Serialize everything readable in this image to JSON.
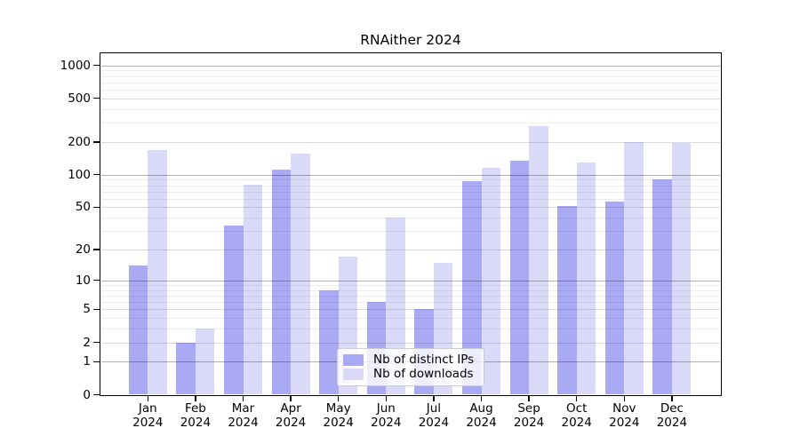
{
  "chart_data": {
    "type": "bar",
    "title": "RNAither 2024",
    "categories": [
      "Jan",
      "Feb",
      "Mar",
      "Apr",
      "May",
      "Jun",
      "Jul",
      "Aug",
      "Sep",
      "Oct",
      "Nov",
      "Dec"
    ],
    "category_year": "2024",
    "series": [
      {
        "name": "Nb of distinct IPs",
        "color": "#a9a9f4",
        "values": [
          14,
          2,
          34,
          112,
          8,
          6,
          5,
          87,
          135,
          51,
          56,
          90
        ]
      },
      {
        "name": "Nb of downloads",
        "color": "#dadaf8",
        "values": [
          168,
          3,
          81,
          155,
          17,
          40,
          15,
          115,
          280,
          130,
          200,
          197
        ]
      }
    ],
    "yscale": "log1p",
    "yticks": [
      0,
      1,
      2,
      5,
      10,
      20,
      50,
      100,
      200,
      500,
      1000
    ],
    "ytick_labels": [
      "0",
      "1",
      "2",
      "5",
      "10",
      "20",
      "50",
      "100",
      "200",
      "500",
      "1000"
    ],
    "ylim": [
      0,
      1250
    ],
    "grid": "horizontal",
    "gridlines": {
      "major": [
        1,
        10,
        100,
        1000
      ],
      "medium": [
        2,
        5,
        20,
        50,
        200,
        500
      ],
      "minor": [
        3,
        4,
        6,
        7,
        8,
        9,
        30,
        40,
        60,
        70,
        80,
        90,
        300,
        400,
        600,
        700,
        800,
        900
      ]
    },
    "legend_position": "inside-bottom-center",
    "colors": {
      "background": "#ffffff",
      "axis": "#000000",
      "text": "#000000"
    }
  }
}
